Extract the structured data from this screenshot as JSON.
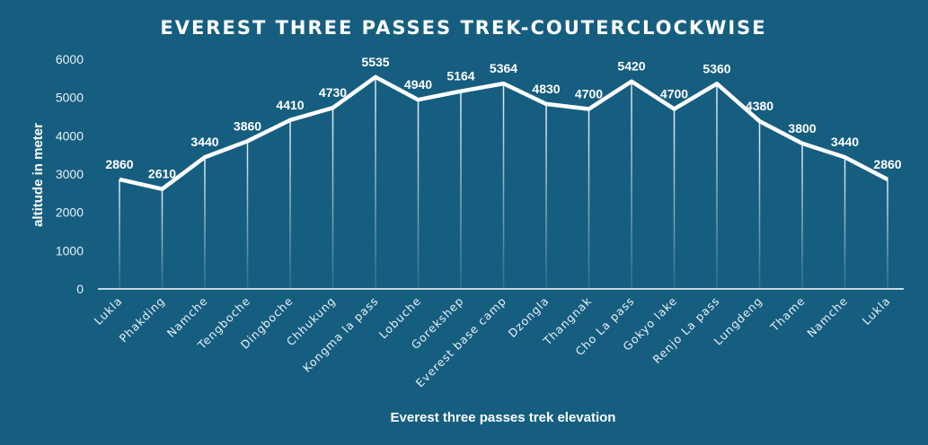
{
  "chart_data": {
    "type": "line",
    "title": "EVEREST THREE PASSES TREK-COUTERCLOCKWISE",
    "xlabel": "Everest three passes trek elevation",
    "ylabel": "altitude in meter",
    "ylim": [
      0,
      6000
    ],
    "yticks": [
      0,
      1000,
      2000,
      3000,
      4000,
      5000,
      6000
    ],
    "grid": false,
    "categories": [
      "Lukla",
      "Phakding",
      "Namche",
      "Tengboche",
      "Dingboche",
      "Chhukung",
      "Kongma la pass",
      "Lobuche",
      "Gorekshep",
      "Everest base camp",
      "Dzongla",
      "Thangnak",
      "Cho La pass",
      "Gokyo lake",
      "Renjo La pass",
      "Lungdeng",
      "Thame",
      "Namche",
      "Lukla"
    ],
    "values": [
      2860,
      2610,
      3440,
      3860,
      4410,
      4730,
      5535,
      4940,
      5164,
      5364,
      4830,
      4700,
      5420,
      4700,
      5360,
      4380,
      3800,
      3440,
      2860
    ],
    "data_labels": true,
    "drop_lines": true,
    "colors": {
      "background": "#165e80",
      "line": "#ffffff"
    }
  }
}
